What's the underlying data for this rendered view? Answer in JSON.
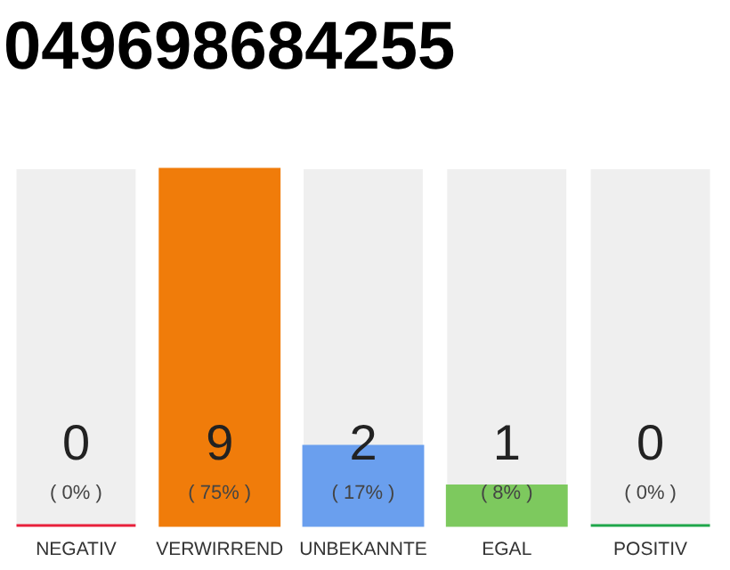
{
  "chart_data": {
    "type": "bar",
    "title": "049698684255",
    "categories": [
      "NEGATIV",
      "VERWIRREND",
      "UNBEKANNTE",
      "EGAL",
      "POSITIV"
    ],
    "values": [
      0,
      9,
      2,
      1,
      0
    ],
    "colors": [
      "#e8203a",
      "#f07c0a",
      "#6a9fee",
      "#7dc95e",
      "#1fa64a"
    ],
    "value_labels": [
      "0",
      "9",
      "2",
      "1",
      "0"
    ],
    "annotations": [
      "( 0% )",
      "( 75% )",
      "( 17% )",
      "( 8% )",
      "( 0% )"
    ]
  }
}
